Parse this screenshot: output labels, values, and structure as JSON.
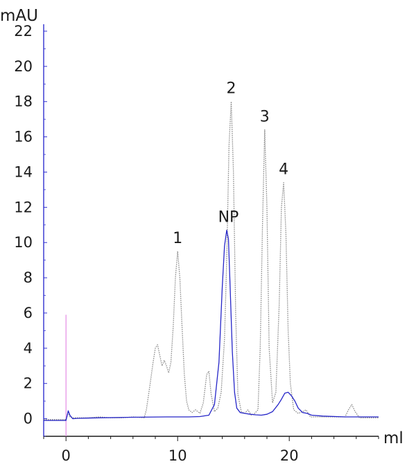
{
  "chart_data": {
    "type": "line",
    "xlabel": "ml",
    "ylabel": "mAU",
    "xlim": [
      -2,
      28
    ],
    "ylim": [
      -1,
      22
    ],
    "x_ticks": [
      0,
      10,
      20
    ],
    "y_ticks": [
      0,
      2,
      4,
      6,
      8,
      10,
      12,
      14,
      16,
      18,
      20,
      22
    ],
    "grid": false,
    "legend": "none",
    "injection_marker": {
      "x": 0,
      "y_top": 5.9,
      "color": "#e58ae5"
    },
    "series": [
      {
        "color": "#8c8c8c",
        "dash": true,
        "x": [
          -2.0,
          0.0,
          0.2,
          0.35,
          0.6,
          1.0,
          2.0,
          3.0,
          4.0,
          5.0,
          6.0,
          7.0,
          7.2,
          7.5,
          7.8,
          8.0,
          8.2,
          8.4,
          8.6,
          8.8,
          9.0,
          9.2,
          9.4,
          9.6,
          9.8,
          10.0,
          10.2,
          10.4,
          10.6,
          10.8,
          11.0,
          11.3,
          11.6,
          12.0,
          12.3,
          12.6,
          12.8,
          13.0,
          13.3,
          13.6,
          13.9,
          14.2,
          14.4,
          14.6,
          14.8,
          15.0,
          15.2,
          15.4,
          15.7,
          16.0,
          16.3,
          16.6,
          16.9,
          17.2,
          17.4,
          17.6,
          17.8,
          18.0,
          18.2,
          18.5,
          18.8,
          19.1,
          19.3,
          19.5,
          19.7,
          19.9,
          20.1,
          20.4,
          20.8,
          21.2,
          21.5,
          21.9,
          22.5,
          23.0,
          24.0,
          25.0,
          25.3,
          25.6,
          25.9,
          26.3,
          27.0,
          28.0
        ],
        "y": [
          -0.05,
          -0.05,
          0.35,
          0.1,
          0.05,
          0.05,
          0.05,
          0.1,
          0.05,
          0.05,
          0.1,
          0.05,
          0.5,
          1.8,
          3.2,
          4.0,
          4.2,
          3.6,
          3.0,
          3.3,
          3.0,
          2.6,
          3.2,
          5.2,
          8.0,
          9.5,
          8.0,
          5.2,
          2.5,
          1.0,
          0.5,
          0.35,
          0.5,
          0.3,
          0.9,
          2.5,
          2.7,
          1.4,
          0.4,
          0.6,
          1.5,
          4.5,
          9.0,
          15.5,
          18.0,
          14.0,
          6.0,
          1.4,
          0.4,
          0.3,
          0.5,
          0.2,
          0.3,
          0.5,
          4.0,
          11.0,
          16.4,
          12.0,
          4.0,
          0.9,
          1.5,
          6.5,
          12.0,
          13.4,
          10.5,
          5.0,
          2.0,
          0.5,
          0.3,
          0.4,
          0.5,
          0.1,
          0.1,
          0.1,
          0.1,
          0.1,
          0.5,
          0.8,
          0.4,
          0.05,
          0.05,
          0.05
        ]
      },
      {
        "color": "#2525c8",
        "dash": false,
        "x": [
          -2.0,
          0.0,
          0.2,
          0.35,
          0.6,
          1.0,
          3.0,
          6.0,
          9.0,
          11.0,
          12.0,
          12.8,
          13.3,
          13.7,
          14.0,
          14.2,
          14.4,
          14.55,
          14.7,
          14.9,
          15.1,
          15.3,
          15.6,
          16.0,
          16.5,
          17.0,
          17.5,
          18.0,
          18.5,
          19.0,
          19.3,
          19.6,
          19.9,
          20.2,
          20.5,
          20.8,
          21.2,
          21.6,
          22.0,
          23.0,
          25.0,
          28.0
        ],
        "y": [
          -0.1,
          -0.1,
          0.45,
          0.2,
          0.0,
          0.02,
          0.05,
          0.08,
          0.1,
          0.1,
          0.12,
          0.2,
          0.8,
          3.2,
          7.5,
          9.8,
          10.7,
          10.2,
          7.5,
          3.8,
          1.5,
          0.6,
          0.35,
          0.3,
          0.25,
          0.22,
          0.2,
          0.25,
          0.4,
          0.8,
          1.1,
          1.45,
          1.5,
          1.3,
          1.0,
          0.6,
          0.35,
          0.3,
          0.2,
          0.15,
          0.1,
          0.1
        ]
      }
    ],
    "annotations": [
      {
        "text": "1",
        "x": 10.0,
        "y": 9.5
      },
      {
        "text": "NP",
        "x": 14.55,
        "y": 10.7
      },
      {
        "text": "2",
        "x": 14.8,
        "y": 18.0
      },
      {
        "text": "3",
        "x": 17.8,
        "y": 16.4
      },
      {
        "text": "4",
        "x": 19.5,
        "y": 13.4
      }
    ]
  }
}
